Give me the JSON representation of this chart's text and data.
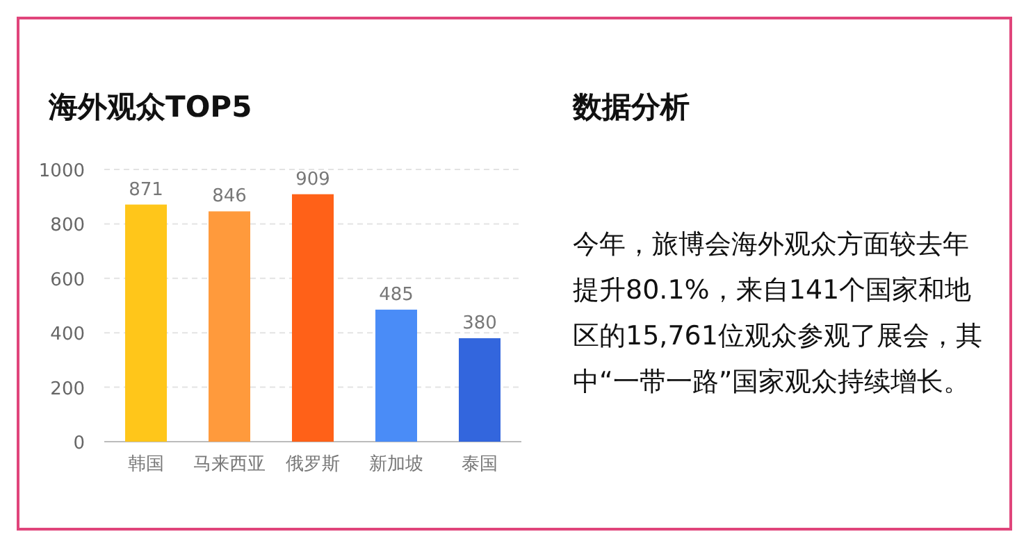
{
  "chart_data": [
    {
      "type": "bar",
      "title": "海外观众TOP5",
      "categories": [
        "韩国",
        "马来西亚",
        "俄罗斯",
        "新加坡",
        "泰国"
      ],
      "values": [
        871,
        846,
        909,
        485,
        380
      ],
      "colors": [
        "#ffc61a",
        "#ff9a3c",
        "#ff6118",
        "#4a8cf7",
        "#3366dd"
      ],
      "ylim": [
        0,
        1000
      ],
      "yticks": [
        0,
        200,
        400,
        600,
        800,
        1000
      ],
      "grid": "y",
      "data_labels": true
    },
    {
      "type": "other",
      "title": "数据分析",
      "annotations": [
        "今年，旅博会海外观众方面较去年提升80.1%，来自141个国家和地区的15,761位观众参观了展会，其中“一带一路”国家观众持续增长。"
      ]
    }
  ]
}
